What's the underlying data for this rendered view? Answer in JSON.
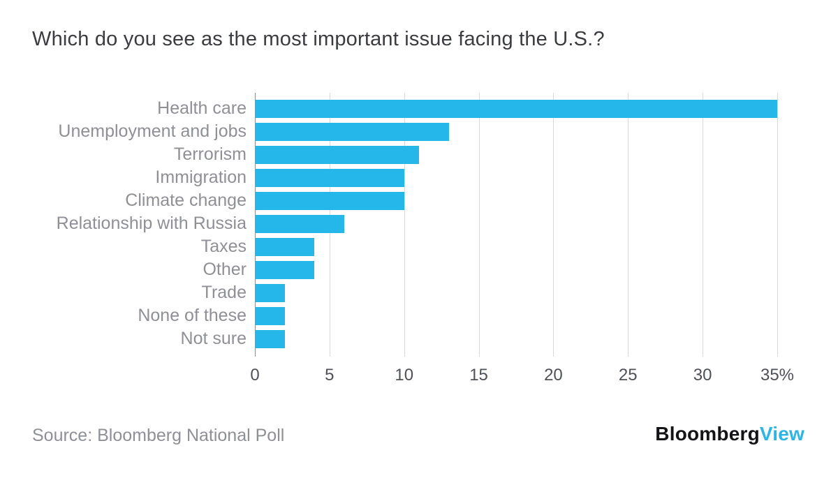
{
  "chart": {
    "title": "Which do you see as the most important issue facing the U.S.?"
  },
  "chart_data": {
    "type": "bar",
    "orientation": "horizontal",
    "title": "Which do you see as the most important issue facing the U.S.?",
    "categories": [
      "Health care",
      "Unemployment and jobs",
      "Terrorism",
      "Immigration",
      "Climate change",
      "Relationship with Russia",
      "Taxes",
      "Other",
      "Trade",
      "None of these",
      "Not sure"
    ],
    "values": [
      35,
      13,
      11,
      10,
      10,
      6,
      4,
      4,
      2,
      2,
      2
    ],
    "xlabel": "",
    "ylabel": "",
    "xlim": [
      0,
      35
    ],
    "ticks": [
      0,
      5,
      10,
      15,
      20,
      25,
      30,
      35
    ],
    "tick_labels": [
      "0",
      "5",
      "10",
      "15",
      "20",
      "25",
      "30",
      "35%"
    ],
    "grid": true,
    "legend": "none",
    "bar_color": "#25b6ea"
  },
  "footer": {
    "source": "Source: Bloomberg National Poll",
    "logo_black": "Bloomberg",
    "logo_cyan": "View",
    "logo_cyan_color": "#2bb5e8"
  }
}
